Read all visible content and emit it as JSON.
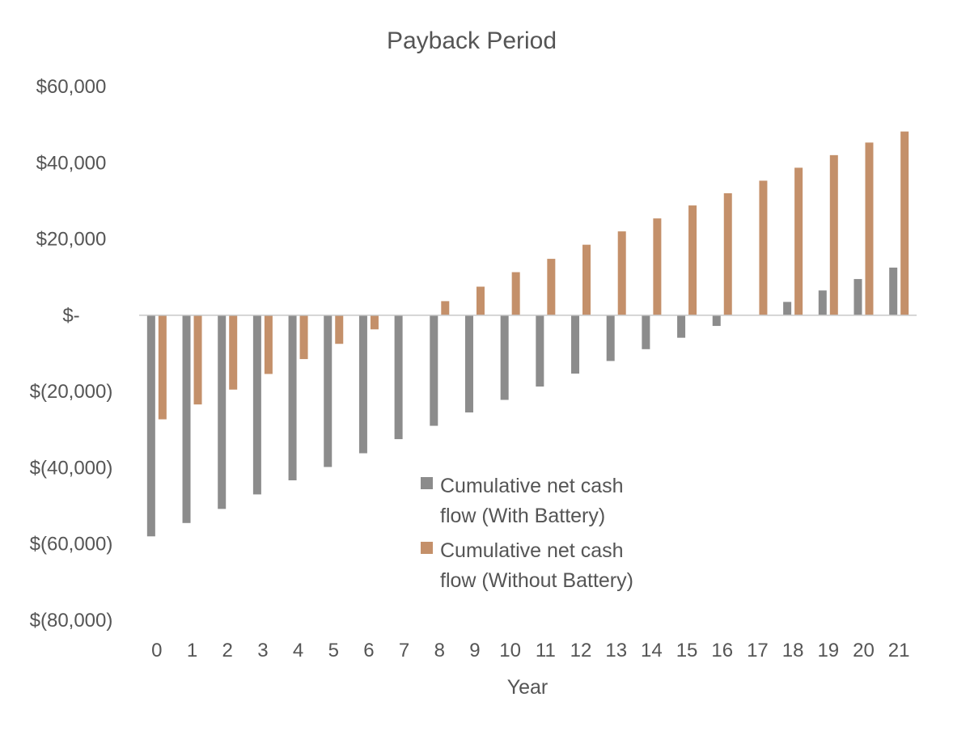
{
  "chart_data": {
    "type": "bar",
    "title": "Payback Period",
    "xlabel": "Year",
    "ylabel": "",
    "ylim": [
      -80000,
      60000
    ],
    "yticks": [
      60000,
      40000,
      20000,
      0,
      -20000,
      -40000,
      -60000,
      -80000
    ],
    "ytick_labels": [
      "$60,000",
      "$40,000",
      "$20,000",
      "$-",
      "$(20,000)",
      "$(40,000)",
      "$(60,000)",
      "$(80,000)"
    ],
    "categories": [
      "0",
      "1",
      "2",
      "3",
      "4",
      "5",
      "6",
      "7",
      "8",
      "9",
      "10",
      "11",
      "12",
      "13",
      "14",
      "15",
      "16",
      "17",
      "18",
      "19",
      "20",
      "21"
    ],
    "legend_position": "center-bottom",
    "series": [
      {
        "name": "Cumulative net cash flow (With Battery)",
        "legend_lines": [
          "Cumulative net cash",
          "flow (With Battery)"
        ],
        "color": "#8c8c8c",
        "values": [
          -58000,
          -54500,
          -50800,
          -47000,
          -43300,
          -39800,
          -36200,
          -32500,
          -29000,
          -25500,
          -22200,
          -18700,
          -15300,
          -12000,
          -8900,
          -5900,
          -2800,
          0,
          3500,
          6500,
          9500,
          12500
        ]
      },
      {
        "name": "Cumulative net cash flow (Without Battery)",
        "legend_lines": [
          "Cumulative net cash",
          "flow (Without Battery)"
        ],
        "color": "#c4906a",
        "values": [
          -27300,
          -23400,
          -19500,
          -15400,
          -11500,
          -7500,
          -3700,
          0,
          3700,
          7500,
          11300,
          14800,
          18500,
          22000,
          25400,
          28800,
          32000,
          35300,
          38700,
          42000,
          45300,
          48200
        ]
      }
    ]
  }
}
